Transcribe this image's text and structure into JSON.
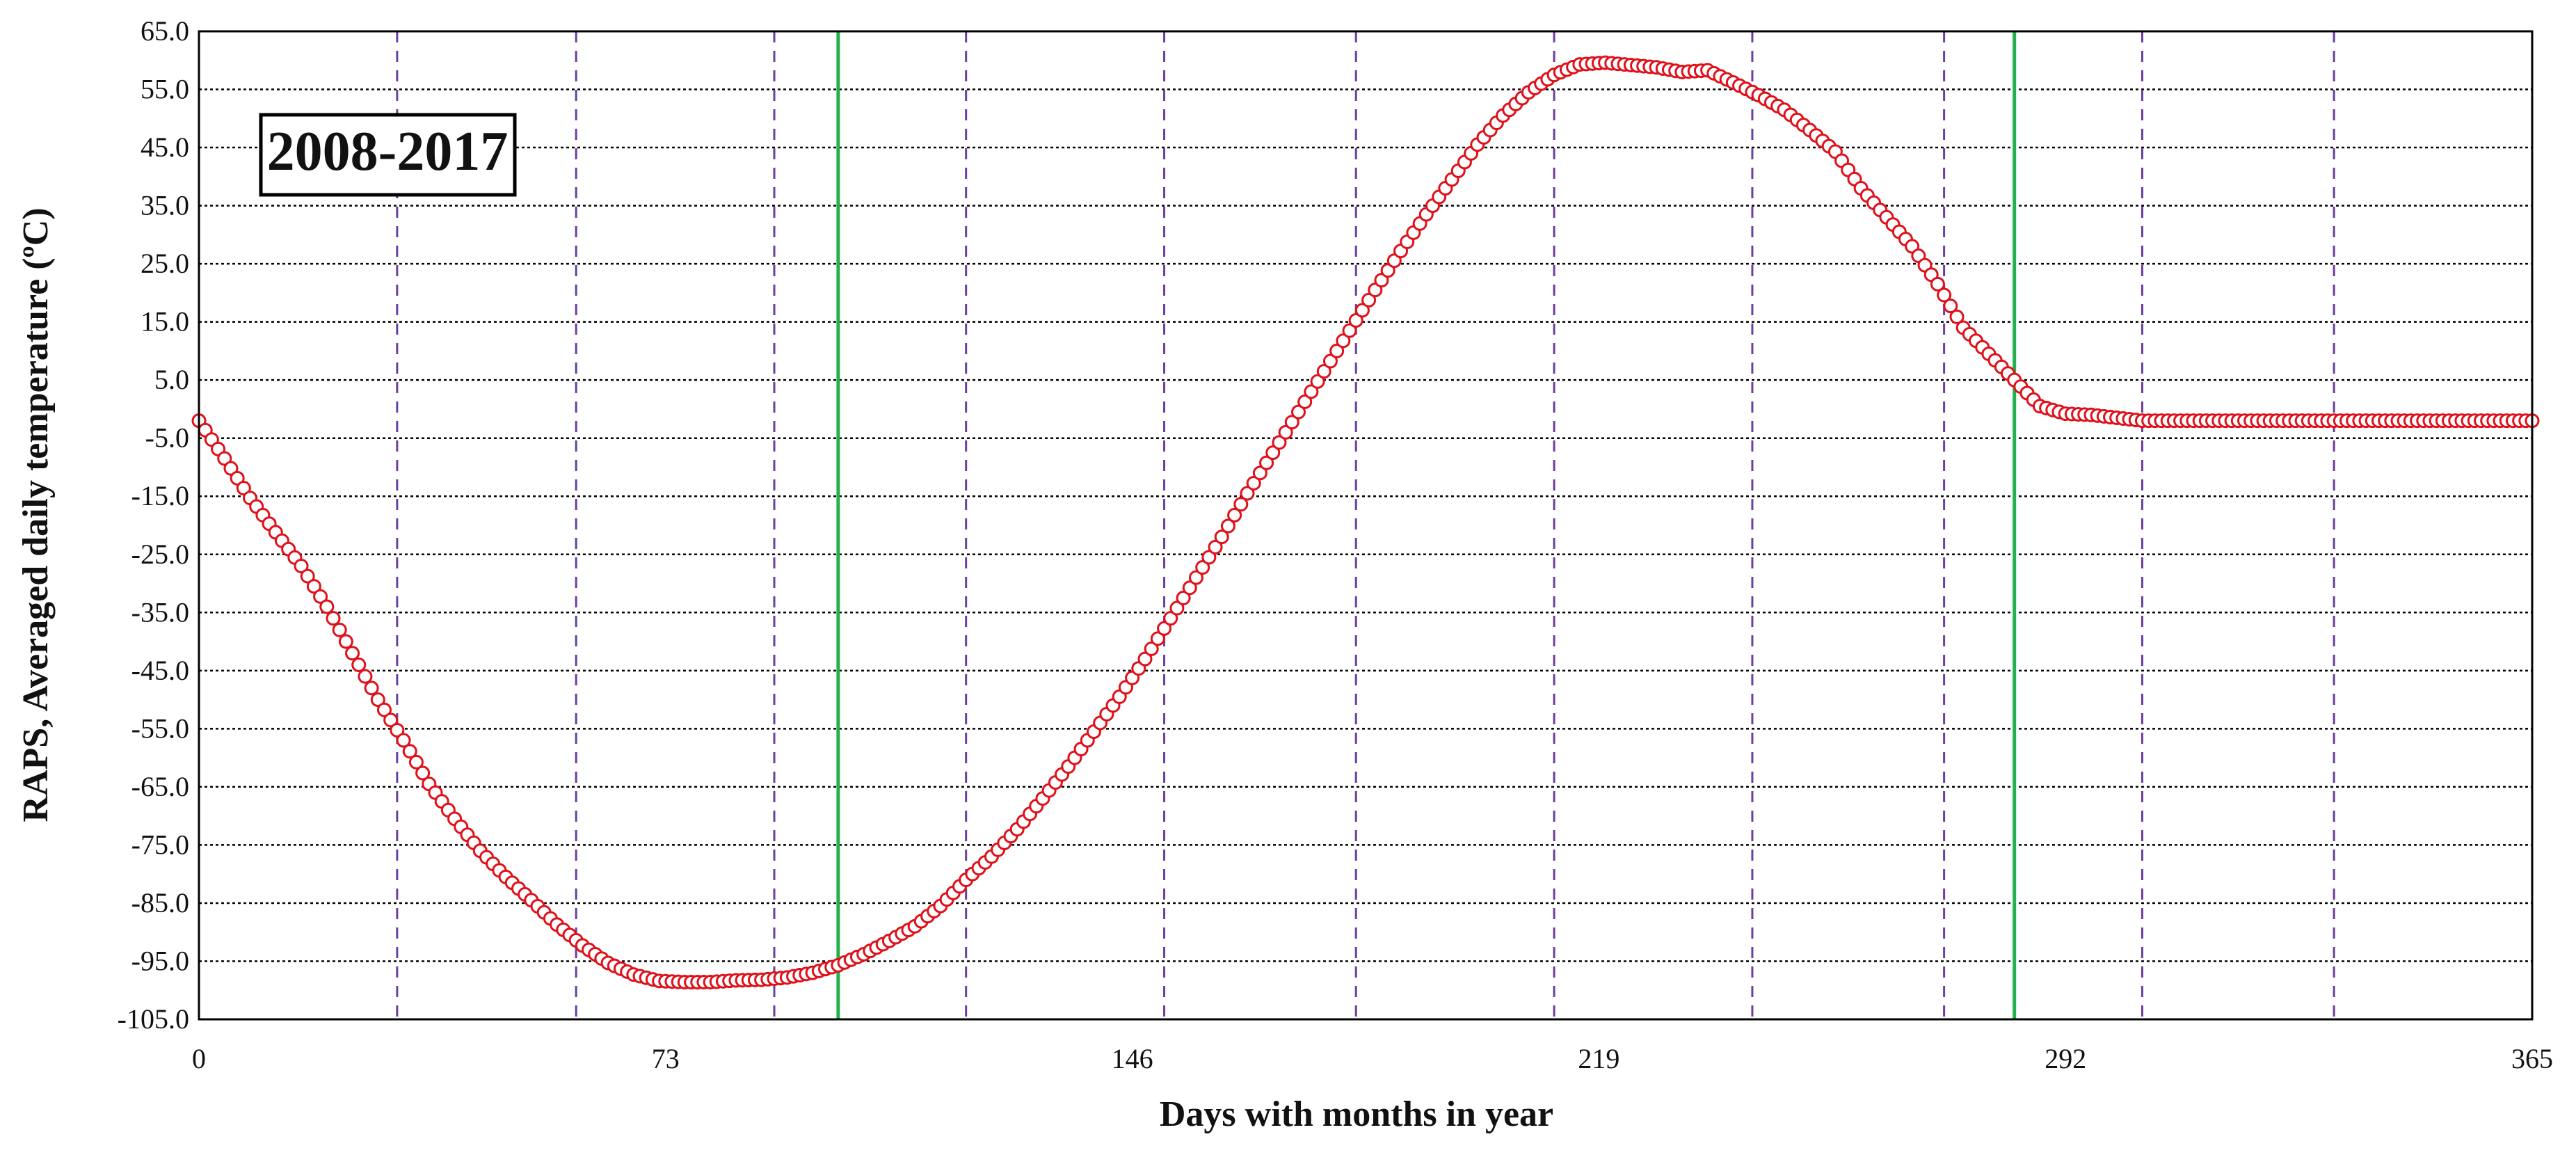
{
  "chart_data": {
    "type": "scatter",
    "title": "",
    "xlabel": "Days with months in year",
    "ylabel": "RAPS, Averaged daily temperature (ºC)",
    "xlim": [
      0,
      365
    ],
    "ylim": [
      -105,
      65
    ],
    "x_ticks": [
      0,
      73,
      146,
      219,
      292,
      365
    ],
    "x_tick_labels": [
      "0",
      "73",
      "146",
      "219",
      "292",
      "365"
    ],
    "y_ticks": [
      65,
      55,
      45,
      35,
      25,
      15,
      5,
      -5,
      -15,
      -25,
      -35,
      -45,
      -55,
      -65,
      -75,
      -85,
      -95,
      -105
    ],
    "y_tick_labels": [
      "65.0",
      "55.0",
      "45.0",
      "35.0",
      "25.0",
      "15.0",
      "5.0",
      "-5.0",
      "-15.0",
      "-25.0",
      "-35.0",
      "-45.0",
      "-55.0",
      "-65.0",
      "-75.0",
      "-85.0",
      "-95.0",
      "-105.0"
    ],
    "horizontal_grid": true,
    "month_boundaries": [
      31,
      59,
      90,
      120,
      151,
      181,
      212,
      243,
      273,
      304,
      334
    ],
    "green_lines": [
      100,
      284
    ],
    "annotation": "2008-2017",
    "series": [
      {
        "marker": "open-circle",
        "color": "#e0101a",
        "x": [
          0,
          4,
          8,
          12,
          16,
          20,
          24,
          28,
          32,
          36,
          40,
          44,
          48,
          52,
          56,
          60,
          64,
          68,
          72,
          76,
          80,
          84,
          88,
          92,
          96,
          100,
          104,
          108,
          112,
          116,
          120,
          124,
          128,
          132,
          136,
          140,
          144,
          148,
          152,
          156,
          160,
          164,
          168,
          172,
          176,
          180,
          184,
          188,
          192,
          196,
          200,
          204,
          208,
          212,
          216,
          220,
          224,
          228,
          232,
          236,
          240,
          244,
          248,
          252,
          256,
          260,
          264,
          268,
          272,
          276,
          280,
          284,
          288,
          292,
          296,
          300,
          304,
          308,
          312,
          316,
          320,
          324,
          328,
          332,
          336,
          340,
          344,
          348,
          352,
          356,
          360,
          365
        ],
        "y": [
          -2.0,
          -8.5,
          -15.3,
          -21.2,
          -27.0,
          -34.0,
          -42.0,
          -50.0,
          -57.0,
          -64.5,
          -70.5,
          -76.0,
          -80.5,
          -84.5,
          -88.7,
          -92.3,
          -95.3,
          -97.3,
          -98.4,
          -98.6,
          -98.6,
          -98.3,
          -98.2,
          -97.8,
          -97.0,
          -95.7,
          -93.8,
          -91.5,
          -89.0,
          -85.5,
          -81.0,
          -77.0,
          -72.3,
          -67.0,
          -61.5,
          -55.5,
          -49.5,
          -43.0,
          -36.0,
          -29.0,
          -22.0,
          -14.5,
          -7.5,
          -0.5,
          6.5,
          13.5,
          20.5,
          27.2,
          33.5,
          39.5,
          45.5,
          50.5,
          54.5,
          57.5,
          59.3,
          59.6,
          59.2,
          58.8,
          58.0,
          58.3,
          56.2,
          54.0,
          51.5,
          48.0,
          44.3,
          38.0,
          33.0,
          28.0,
          21.5,
          14.0,
          9.5,
          5.0,
          0.5,
          -0.8,
          -1.0,
          -1.5,
          -2.0,
          -2.0,
          -2.0,
          -2.0,
          -2.0,
          -2.0,
          -2.0,
          -2.0,
          -2.0,
          -2.0,
          -2.0,
          -2.0,
          -2.0,
          -2.0,
          -2.0,
          -2.0
        ]
      }
    ]
  }
}
